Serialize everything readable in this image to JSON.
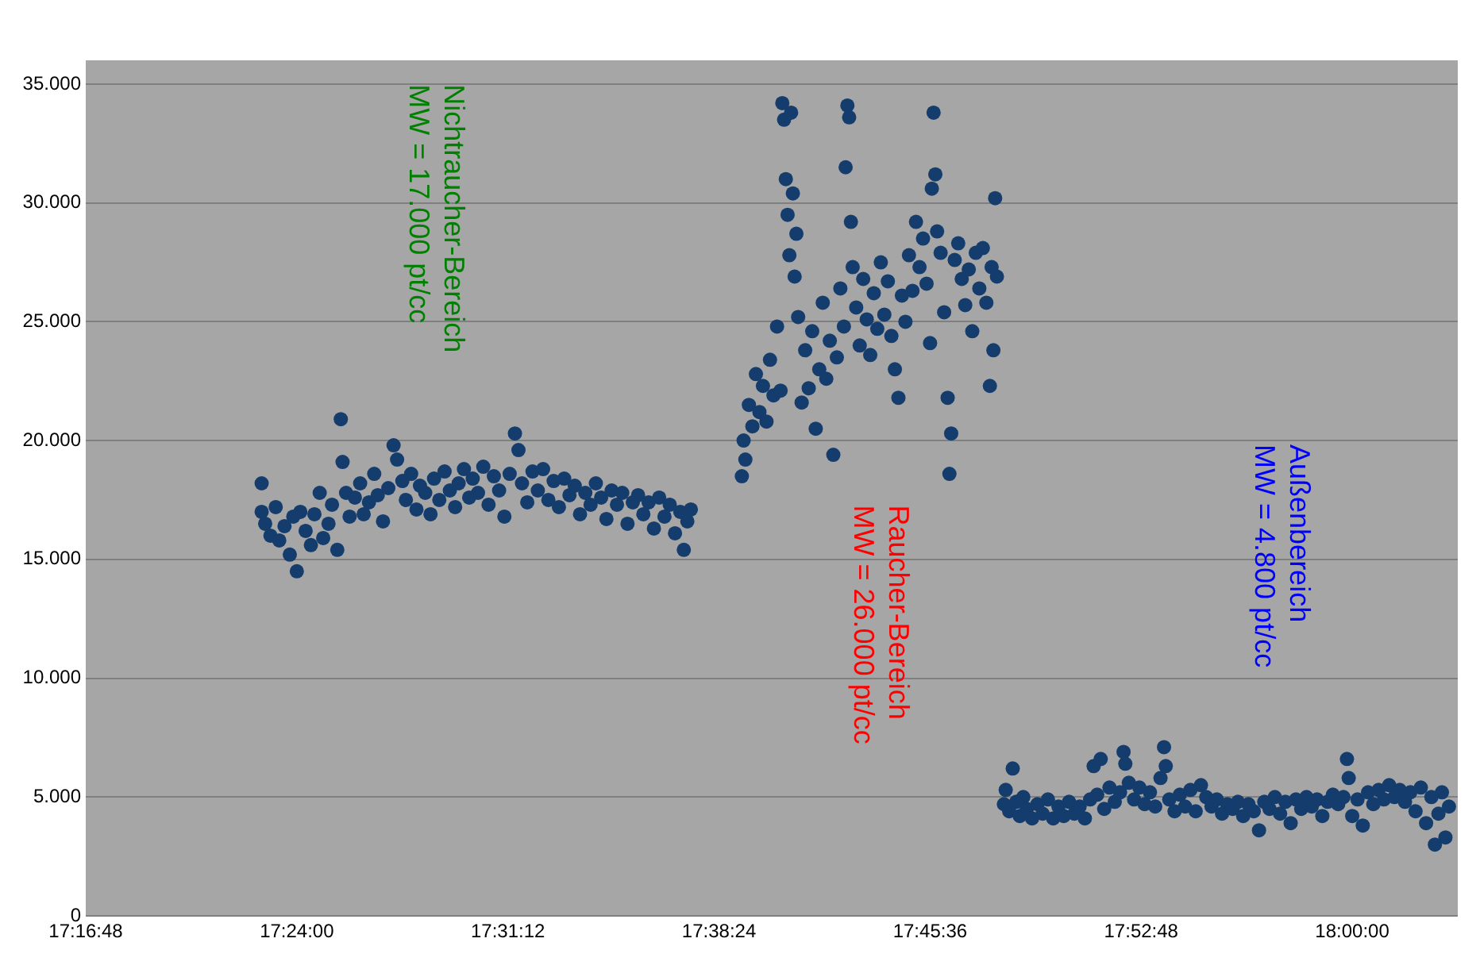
{
  "chart_data": {
    "type": "scatter",
    "color": "#143c6c",
    "marker": "circle",
    "grid": "y",
    "legend": false,
    "xlim": [
      17.28,
      18.06
    ],
    "xticks": [
      {
        "value": 17.28,
        "label": "17:16:48"
      },
      {
        "value": 17.4,
        "label": "17:24:00"
      },
      {
        "value": 17.52,
        "label": "17:31:12"
      },
      {
        "value": 17.64,
        "label": "17:38:24"
      },
      {
        "value": 17.76,
        "label": "17:45:36"
      },
      {
        "value": 17.88,
        "label": "17:52:48"
      },
      {
        "value": 18.0,
        "label": "18:00:00"
      }
    ],
    "ylim": [
      0,
      36000
    ],
    "yticks": [
      0,
      {
        "value": 5000,
        "label": "5.000"
      },
      {
        "value": 10000,
        "label": "10.000"
      },
      {
        "value": 15000,
        "label": "15.000"
      },
      {
        "value": 20000,
        "label": "20.000"
      },
      {
        "value": 25000,
        "label": "25.000"
      },
      {
        "value": 30000,
        "label": "30.000"
      },
      {
        "value": 35000,
        "label": "35.000"
      }
    ],
    "annotations": [
      "Nichtraucher-Bereich\nMW = 17.000 pt/cc",
      "Raucher-Bereich\nMW = 26.000 pt/cc",
      "Außenbereich\nMW = 4.800 pt/cc"
    ],
    "x": [
      17.38,
      17.38,
      17.382,
      17.385,
      17.388,
      17.39,
      17.393,
      17.396,
      17.398,
      17.4,
      17.402,
      17.405,
      17.408,
      17.41,
      17.413,
      17.415,
      17.418,
      17.42,
      17.423,
      17.425,
      17.426,
      17.428,
      17.43,
      17.433,
      17.436,
      17.438,
      17.441,
      17.444,
      17.446,
      17.449,
      17.452,
      17.455,
      17.457,
      17.46,
      17.462,
      17.465,
      17.468,
      17.47,
      17.473,
      17.476,
      17.478,
      17.481,
      17.484,
      17.487,
      17.49,
      17.492,
      17.495,
      17.498,
      17.5,
      17.503,
      17.506,
      17.509,
      17.512,
      17.515,
      17.518,
      17.521,
      17.524,
      17.526,
      17.528,
      17.531,
      17.534,
      17.537,
      17.54,
      17.543,
      17.546,
      17.549,
      17.552,
      17.555,
      17.558,
      17.561,
      17.564,
      17.567,
      17.57,
      17.573,
      17.576,
      17.579,
      17.582,
      17.585,
      17.588,
      17.591,
      17.594,
      17.597,
      17.6,
      17.603,
      17.606,
      17.609,
      17.612,
      17.615,
      17.618,
      17.62,
      17.622,
      17.624,
      17.653,
      17.654,
      17.655,
      17.657,
      17.659,
      17.661,
      17.663,
      17.665,
      17.667,
      17.669,
      17.671,
      17.673,
      17.675,
      17.676,
      17.677,
      17.678,
      17.679,
      17.68,
      17.681,
      17.682,
      17.683,
      17.684,
      17.685,
      17.687,
      17.689,
      17.691,
      17.693,
      17.695,
      17.697,
      17.699,
      17.701,
      17.703,
      17.705,
      17.707,
      17.709,
      17.711,
      17.712,
      17.713,
      17.714,
      17.715,
      17.716,
      17.718,
      17.72,
      17.722,
      17.724,
      17.726,
      17.728,
      17.73,
      17.732,
      17.734,
      17.736,
      17.738,
      17.74,
      17.742,
      17.744,
      17.746,
      17.748,
      17.75,
      17.752,
      17.754,
      17.756,
      17.758,
      17.76,
      17.761,
      17.762,
      17.763,
      17.764,
      17.766,
      17.768,
      17.77,
      17.771,
      17.772,
      17.774,
      17.776,
      17.778,
      17.78,
      17.782,
      17.784,
      17.786,
      17.788,
      17.79,
      17.792,
      17.794,
      17.795,
      17.796,
      17.797,
      17.798,
      17.802,
      17.803,
      17.805,
      17.807,
      17.809,
      17.811,
      17.813,
      17.815,
      17.818,
      17.821,
      17.824,
      17.827,
      17.83,
      17.833,
      17.836,
      17.839,
      17.842,
      17.845,
      17.848,
      17.851,
      17.853,
      17.855,
      17.857,
      17.859,
      17.862,
      17.865,
      17.868,
      17.87,
      17.871,
      17.873,
      17.876,
      17.879,
      17.882,
      17.885,
      17.888,
      17.891,
      17.893,
      17.894,
      17.896,
      17.899,
      17.902,
      17.905,
      17.908,
      17.911,
      17.914,
      17.917,
      17.92,
      17.923,
      17.926,
      17.929,
      17.932,
      17.935,
      17.938,
      17.941,
      17.944,
      17.947,
      17.95,
      17.953,
      17.956,
      17.959,
      17.962,
      17.965,
      17.968,
      17.971,
      17.974,
      17.977,
      17.98,
      17.983,
      17.986,
      17.989,
      17.992,
      17.995,
      17.997,
      17.998,
      18.0,
      18.003,
      18.006,
      18.009,
      18.012,
      18.015,
      18.018,
      18.021,
      18.024,
      18.027,
      18.03,
      18.033,
      18.036,
      18.039,
      18.042,
      18.045,
      18.047,
      18.049,
      18.051,
      18.053,
      18.055
    ],
    "values": [
      18200,
      17000,
      16500,
      16000,
      17200,
      15800,
      16400,
      15200,
      16800,
      14500,
      17000,
      16200,
      15600,
      16900,
      17800,
      15900,
      16500,
      17300,
      15400,
      20900,
      19100,
      17800,
      16800,
      17600,
      18200,
      16900,
      17400,
      18600,
      17700,
      16600,
      18000,
      19800,
      19200,
      18300,
      17500,
      18600,
      17100,
      18100,
      17800,
      16900,
      18400,
      17500,
      18700,
      17900,
      17200,
      18200,
      18800,
      17600,
      18400,
      17800,
      18900,
      17300,
      18500,
      17900,
      16800,
      18600,
      20300,
      19600,
      18200,
      17400,
      18700,
      17900,
      18800,
      17500,
      18300,
      17200,
      18400,
      17700,
      18100,
      16900,
      17800,
      17300,
      18200,
      17600,
      16700,
      17900,
      17300,
      17800,
      16500,
      17400,
      17700,
      16900,
      17400,
      16300,
      17600,
      16800,
      17300,
      16100,
      17000,
      15400,
      16600,
      17100,
      18500,
      20000,
      19200,
      21500,
      20600,
      22800,
      21200,
      22300,
      20800,
      23400,
      21900,
      24800,
      22100,
      34200,
      33500,
      31000,
      29500,
      27800,
      33800,
      30400,
      26900,
      28700,
      25200,
      21600,
      23800,
      22200,
      24600,
      20500,
      23000,
      25800,
      22600,
      24200,
      19400,
      23500,
      26400,
      24800,
      31500,
      34100,
      33600,
      29200,
      27300,
      25600,
      24000,
      26800,
      25100,
      23600,
      26200,
      24700,
      27500,
      25300,
      26700,
      24400,
      23000,
      21800,
      26100,
      25000,
      27800,
      26300,
      29200,
      27300,
      28500,
      26600,
      24100,
      30600,
      33800,
      31200,
      28800,
      27900,
      25400,
      21800,
      18600,
      20300,
      27600,
      28300,
      26800,
      25700,
      27200,
      24600,
      27900,
      26400,
      28100,
      25800,
      22300,
      27300,
      23800,
      30200,
      26900,
      4700,
      5300,
      4400,
      6200,
      4800,
      4200,
      5000,
      4500,
      4100,
      4700,
      4300,
      4900,
      4100,
      4600,
      4200,
      4800,
      4300,
      4600,
      4100,
      4900,
      6300,
      5100,
      6600,
      4500,
      5400,
      4800,
      5200,
      6900,
      6400,
      5600,
      4900,
      5400,
      4700,
      5200,
      4600,
      5800,
      7100,
      6300,
      4900,
      4400,
      5100,
      4600,
      5300,
      4400,
      5500,
      5000,
      4600,
      4900,
      4300,
      4700,
      4500,
      4800,
      4200,
      4700,
      4400,
      3600,
      4800,
      4500,
      5000,
      4300,
      4800,
      3900,
      4900,
      4500,
      5000,
      4600,
      4900,
      4200,
      4800,
      5100,
      4700,
      5000,
      6600,
      5800,
      4200,
      4900,
      3800,
      5200,
      4700,
      5300,
      4900,
      5500,
      5000,
      5300,
      4800,
      5200,
      4400,
      5400,
      3900,
      5000,
      3000,
      4300,
      5200,
      3300,
      4600
    ]
  }
}
